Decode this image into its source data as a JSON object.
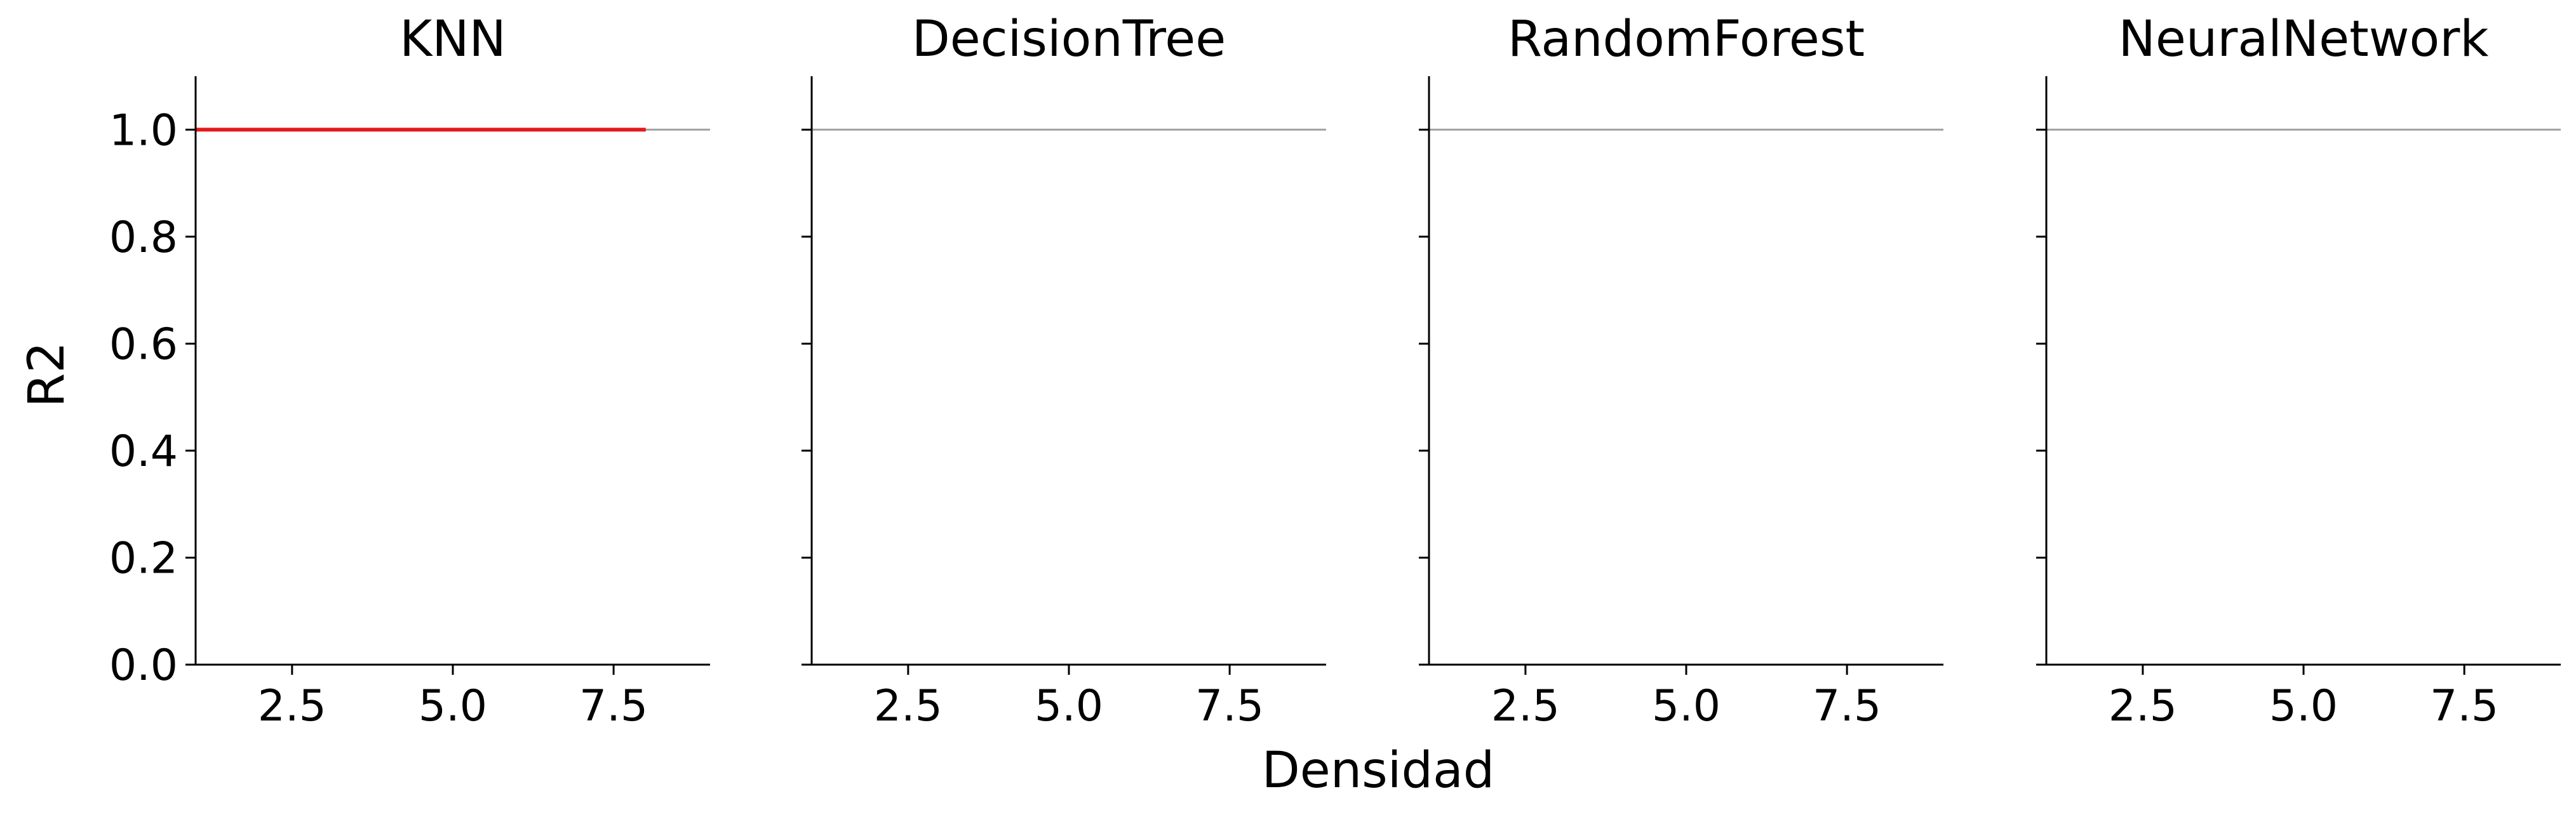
{
  "figure": {
    "xlabel": "Densidad",
    "ylabel": "R2"
  },
  "colors": {
    "series_line": "#e41a1c",
    "reference_line": "#a0a0a0",
    "axis": "#000000"
  },
  "chart_data": [
    {
      "type": "line",
      "title": "KNN",
      "xlabel": "",
      "ylabel": "R2",
      "xlim": [
        1,
        9
      ],
      "ylim": [
        0,
        1.1
      ],
      "xticks": [
        "2.5",
        "5.0",
        "7.5"
      ],
      "yticks": [
        "0.0",
        "0.2",
        "0.4",
        "0.6",
        "0.8",
        "1.0"
      ],
      "reference_line_y": 1.0,
      "series": [
        {
          "x": [
            1,
            2,
            3,
            4,
            5,
            6,
            7,
            8
          ],
          "y": [
            1.0,
            1.0,
            1.0,
            1.0,
            1.0,
            1.0,
            1.0,
            1.0
          ]
        }
      ],
      "grid": false
    },
    {
      "type": "line",
      "title": "DecisionTree",
      "xlabel": "",
      "ylabel": "",
      "xlim": [
        1,
        9
      ],
      "ylim": [
        0,
        1.1
      ],
      "xticks": [
        "2.5",
        "5.0",
        "7.5"
      ],
      "yticks": [],
      "reference_line_y": 1.0,
      "series": [],
      "grid": false
    },
    {
      "type": "line",
      "title": "RandomForest",
      "xlabel": "",
      "ylabel": "",
      "xlim": [
        1,
        9
      ],
      "ylim": [
        0,
        1.1
      ],
      "xticks": [
        "2.5",
        "5.0",
        "7.5"
      ],
      "yticks": [],
      "reference_line_y": 1.0,
      "series": [],
      "grid": false
    },
    {
      "type": "line",
      "title": "NeuralNetwork",
      "xlabel": "",
      "ylabel": "",
      "xlim": [
        1,
        9
      ],
      "ylim": [
        0,
        1.1
      ],
      "xticks": [
        "2.5",
        "5.0",
        "7.5"
      ],
      "yticks": [],
      "reference_line_y": 1.0,
      "series": [],
      "grid": false
    }
  ]
}
